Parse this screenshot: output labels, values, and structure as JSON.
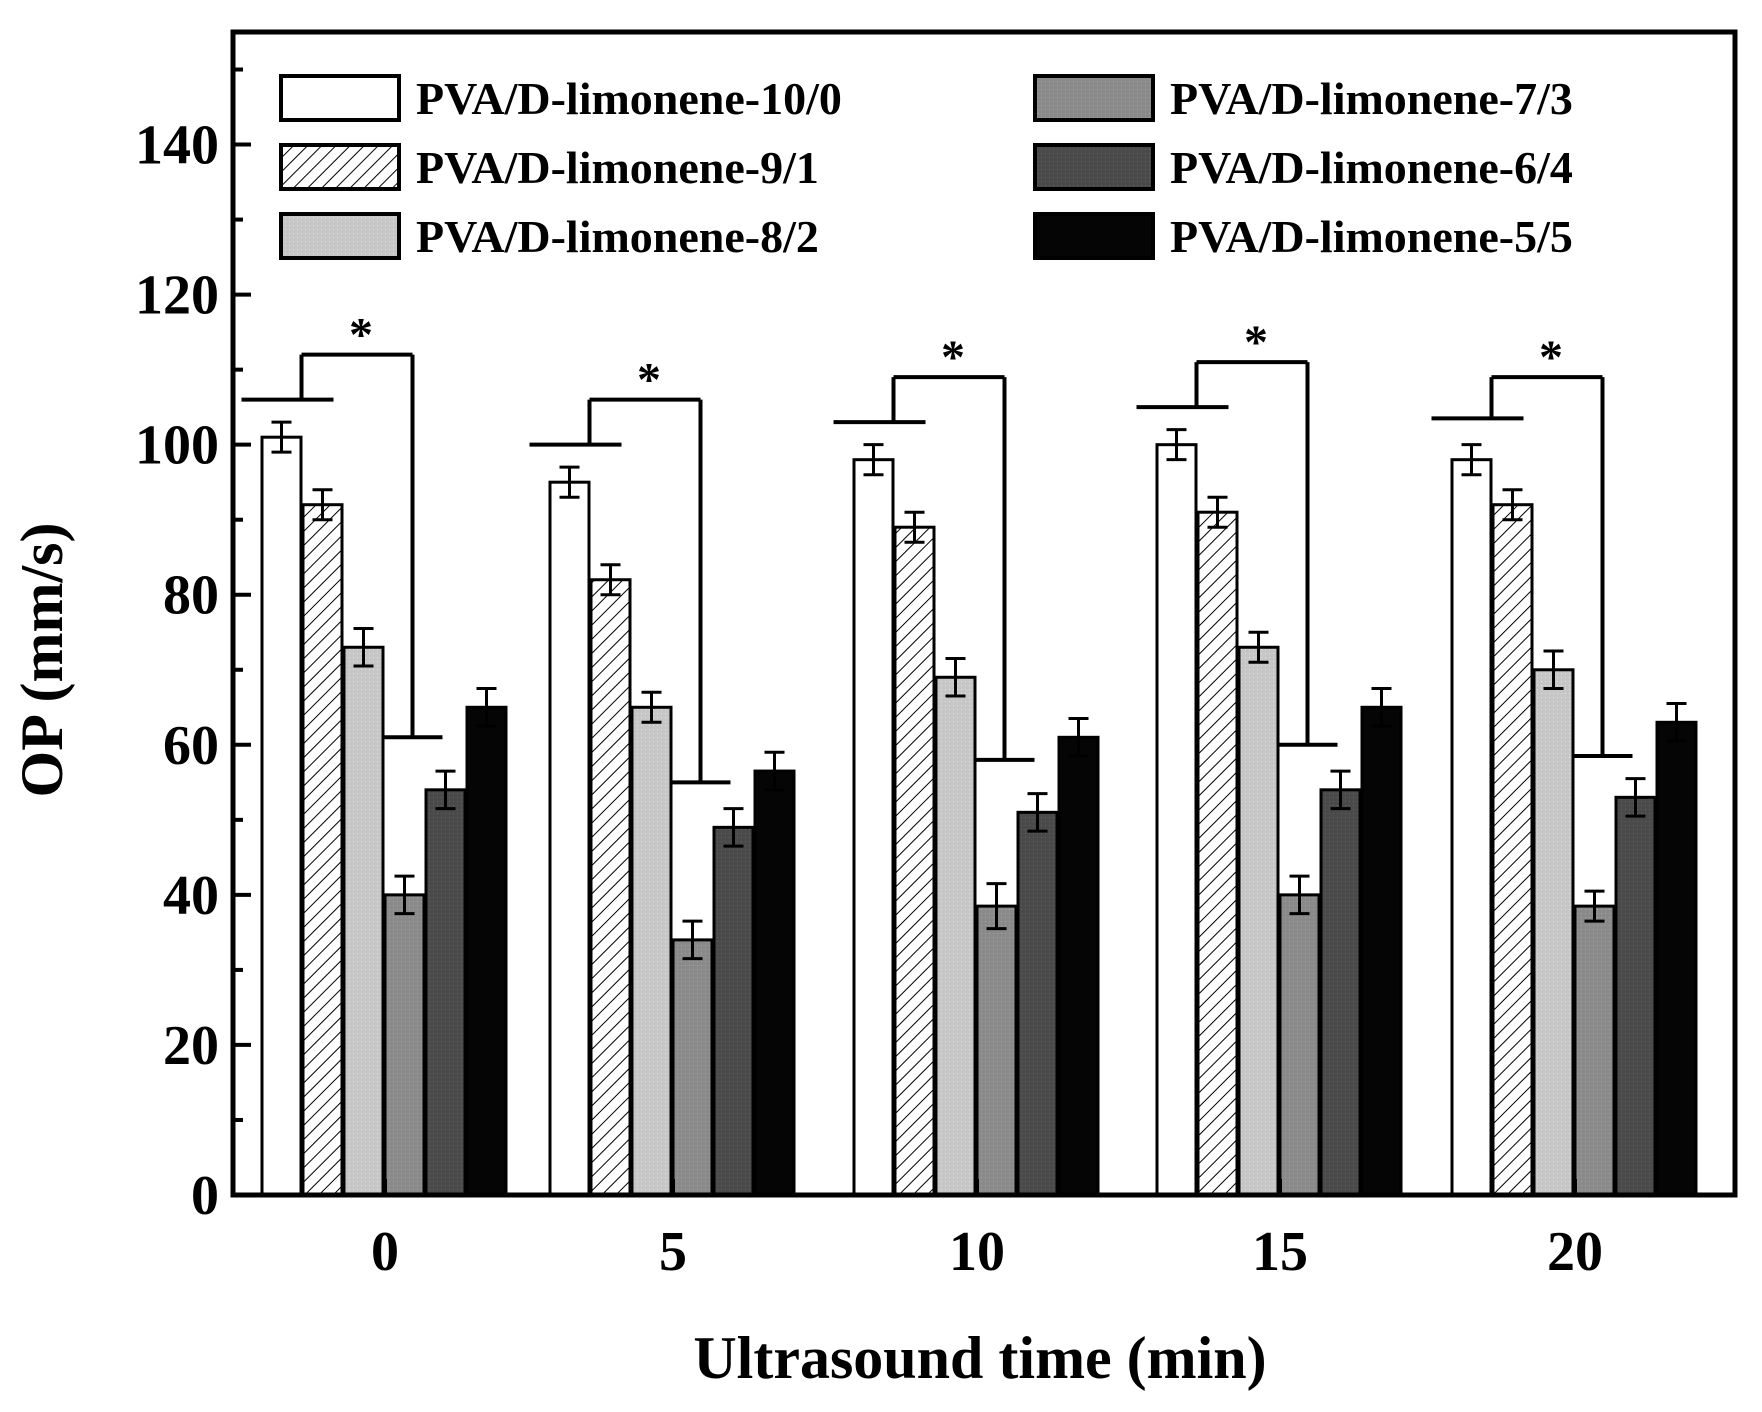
{
  "chart_data": {
    "type": "bar",
    "xlabel": "Ultrasound time (min)",
    "ylabel": "OP (mm/s)",
    "ylim": [
      0,
      155
    ],
    "yticks": [
      0,
      20,
      40,
      60,
      80,
      100,
      120,
      140
    ],
    "categories": [
      "0",
      "5",
      "10",
      "15",
      "20"
    ],
    "legend_position": "top",
    "series": [
      {
        "name": "PVA/D-limonene-10/0",
        "values": [
          101,
          95,
          98,
          100,
          98
        ],
        "errors": [
          2,
          2,
          2,
          2,
          2
        ],
        "fill": "white"
      },
      {
        "name": "PVA/D-limonene-9/1",
        "values": [
          92,
          82,
          89,
          91,
          92
        ],
        "errors": [
          2,
          2,
          2,
          2,
          2
        ],
        "fill": "hatch"
      },
      {
        "name": "PVA/D-limonene-8/2",
        "values": [
          73,
          65,
          69,
          73,
          70
        ],
        "errors": [
          2.5,
          2,
          2.5,
          2,
          2.5
        ],
        "fill": "light-gray"
      },
      {
        "name": "PVA/D-limonene-7/3",
        "values": [
          40,
          34,
          38.5,
          40,
          38.5
        ],
        "errors": [
          2.5,
          2.5,
          3,
          2.5,
          2
        ],
        "fill": "gray"
      },
      {
        "name": "PVA/D-limonene-6/4",
        "values": [
          54,
          49,
          51,
          54,
          53
        ],
        "errors": [
          2.5,
          2.5,
          2.5,
          2.5,
          2.5
        ],
        "fill": "dark-gray"
      },
      {
        "name": "PVA/D-limonene-5/5",
        "values": [
          65,
          56.5,
          61,
          65,
          63
        ],
        "errors": [
          2.5,
          2.5,
          2.5,
          2.5,
          2.5
        ],
        "fill": "black"
      }
    ],
    "significance": [
      {
        "category": "0",
        "label": "*",
        "left_level": 106,
        "top_level": 112,
        "right_level": 61
      },
      {
        "category": "5",
        "label": "*",
        "left_level": 100,
        "top_level": 106,
        "right_level": 55
      },
      {
        "category": "10",
        "label": "*",
        "left_level": 103,
        "top_level": 109,
        "right_level": 58
      },
      {
        "category": "15",
        "label": "*",
        "left_level": 105,
        "top_level": 111,
        "right_level": 60
      },
      {
        "category": "20",
        "label": "*",
        "left_level": 103.5,
        "top_level": 109,
        "right_level": 58.5
      }
    ],
    "colors": {
      "white": "#ffffff",
      "light-gray": "#c4c4c4",
      "gray": "#8c8c8c",
      "dark-gray": "#4a4a4a",
      "black": "#050505",
      "stroke": "#000000"
    }
  }
}
